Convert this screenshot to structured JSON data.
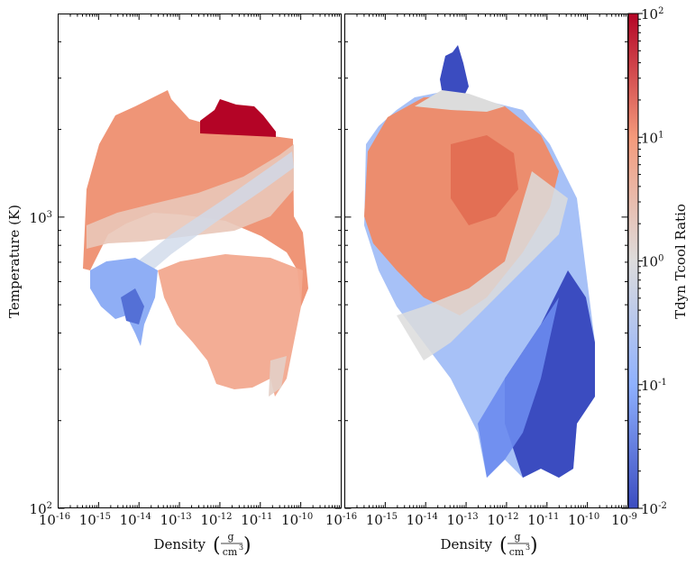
{
  "chart_data": [
    {
      "type": "heatmap",
      "panel": "left",
      "xlabel": "Density",
      "xlabel_unit": {
        "numerator": "g",
        "denominator": "cm",
        "exponent": "3"
      },
      "ylabel": "Temperature  (K)",
      "xscale": "log",
      "yscale": "log",
      "xlim": [
        1e-16,
        1e-09
      ],
      "ylim": [
        100,
        5000
      ],
      "x_ticks": [
        {
          "base": "10",
          "exp": "-16"
        },
        {
          "base": "10",
          "exp": "-15"
        },
        {
          "base": "10",
          "exp": "-14"
        },
        {
          "base": "10",
          "exp": "-13"
        },
        {
          "base": "10",
          "exp": "-12"
        },
        {
          "base": "10",
          "exp": "-11"
        },
        {
          "base": "10",
          "exp": "-10"
        }
      ],
      "y_ticks": [
        {
          "base": "10",
          "exp": "2",
          "value": 100
        },
        {
          "base": "10",
          "exp": "3",
          "value": 1000
        }
      ],
      "regions": [
        {
          "desc": "warm envelope",
          "x_range": [
            3e-16,
            1e-10
          ],
          "y_range": [
            650,
            1900
          ],
          "ratio": 4
        },
        {
          "desc": "hot cap",
          "x_range": [
            3e-13,
            5e-11
          ],
          "y_range": [
            1800,
            2450
          ],
          "ratio": 100
        },
        {
          "desc": "cool tail",
          "x_range": [
            3e-15,
            2e-14
          ],
          "y_range": [
            380,
            700
          ],
          "ratio": 0.08
        },
        {
          "desc": "dense plume",
          "x_range": [
            3e-14,
            1e-10
          ],
          "y_range": [
            240,
            650
          ],
          "ratio": 3
        }
      ]
    },
    {
      "type": "heatmap",
      "panel": "right",
      "xlabel": "Density",
      "xlabel_unit": {
        "numerator": "g",
        "denominator": "cm",
        "exponent": "3"
      },
      "xscale": "log",
      "yscale": "log",
      "xlim": [
        1e-16,
        1e-09
      ],
      "ylim": [
        100,
        5000
      ],
      "x_ticks": [
        {
          "base": "10",
          "exp": "-16"
        },
        {
          "base": "10",
          "exp": "-15"
        },
        {
          "base": "10",
          "exp": "-14"
        },
        {
          "base": "10",
          "exp": "-13"
        },
        {
          "base": "10",
          "exp": "-12"
        },
        {
          "base": "10",
          "exp": "-11"
        },
        {
          "base": "10",
          "exp": "-10"
        },
        {
          "base": "10",
          "exp": "-9"
        }
      ],
      "regions": [
        {
          "desc": "warm core",
          "x_range": [
            1e-16,
            1e-11
          ],
          "y_range": [
            800,
            2200
          ],
          "ratio": 8
        },
        {
          "desc": "cold spike",
          "x_range": [
            5e-14,
            1e-13
          ],
          "y_range": [
            2500,
            4800
          ],
          "ratio": 0.02
        },
        {
          "desc": "cold dense wedge",
          "x_range": [
            1e-12,
            1e-10
          ],
          "y_range": [
            150,
            500
          ],
          "ratio": 0.015
        }
      ]
    }
  ],
  "colorbar": {
    "label": "Tdyn Tcool Ratio",
    "scale": "log",
    "range": [
      0.01,
      100
    ],
    "ticks": [
      {
        "base": "10",
        "exp": "2"
      },
      {
        "base": "10",
        "exp": "1"
      },
      {
        "base": "10",
        "exp": "0"
      },
      {
        "base": "10",
        "exp": "-1"
      },
      {
        "base": "10",
        "exp": "-2"
      }
    ],
    "colors": {
      "low": "#3b4cc0",
      "mid": "#dddddd",
      "high": "#b40426"
    }
  }
}
